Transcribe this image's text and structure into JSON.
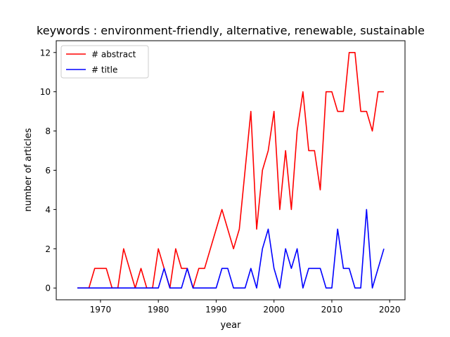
{
  "chart_data": {
    "type": "line",
    "title": "keywords : environment-friendly, alternative, renewable, sustainable",
    "xlabel": "year",
    "ylabel": "number of articles",
    "xlim": [
      1962.35,
      2022.65
    ],
    "ylim": [
      -0.6,
      12.6
    ],
    "xticks": [
      1970,
      1980,
      1990,
      2000,
      2010,
      2020
    ],
    "yticks": [
      0,
      2,
      4,
      6,
      8,
      10,
      12
    ],
    "grid": false,
    "legend_position": "top-left",
    "x": [
      1966,
      1967,
      1968,
      1969,
      1970,
      1971,
      1972,
      1973,
      1974,
      1975,
      1976,
      1977,
      1978,
      1979,
      1980,
      1981,
      1982,
      1983,
      1984,
      1985,
      1986,
      1987,
      1988,
      1989,
      1990,
      1991,
      1992,
      1993,
      1994,
      1995,
      1996,
      1997,
      1998,
      1999,
      2000,
      2001,
      2002,
      2003,
      2004,
      2005,
      2006,
      2007,
      2008,
      2009,
      2010,
      2011,
      2012,
      2013,
      2014,
      2015,
      2016,
      2017,
      2018,
      2019
    ],
    "series": [
      {
        "name": "# abstract",
        "color": "#ff0000",
        "values": [
          0,
          0,
          0,
          1,
          1,
          1,
          0,
          0,
          2,
          1,
          0,
          1,
          0,
          0,
          2,
          1,
          0,
          2,
          1,
          1,
          0,
          1,
          1,
          2,
          3,
          4,
          3,
          2,
          3,
          6,
          9,
          3,
          6,
          7,
          9,
          4,
          7,
          4,
          8,
          10,
          7,
          7,
          5,
          10,
          10,
          9,
          9,
          12,
          12,
          9,
          9,
          8,
          10,
          10
        ]
      },
      {
        "name": "# title",
        "color": "#0000ff",
        "values": [
          0,
          0,
          0,
          0,
          0,
          0,
          0,
          0,
          0,
          0,
          0,
          0,
          0,
          0,
          0,
          1,
          0,
          0,
          0,
          1,
          0,
          0,
          0,
          0,
          0,
          1,
          1,
          0,
          0,
          0,
          1,
          0,
          2,
          3,
          1,
          0,
          2,
          1,
          2,
          0,
          1,
          1,
          1,
          0,
          0,
          3,
          1,
          1,
          0,
          0,
          4,
          0,
          1,
          2
        ]
      }
    ]
  }
}
